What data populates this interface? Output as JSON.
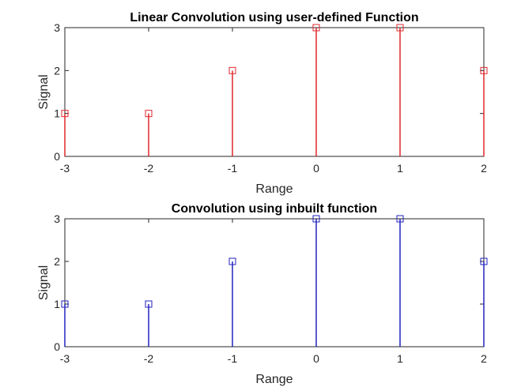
{
  "chart_data": [
    {
      "type": "stem",
      "title": "Linear Convolution using user-defined Function",
      "xlabel": "Range",
      "ylabel": "Signal",
      "x": [
        -3,
        -2,
        -1,
        0,
        1,
        2
      ],
      "values": [
        1,
        1,
        2,
        3,
        3,
        2
      ],
      "xlim": [
        -3,
        2
      ],
      "ylim": [
        0,
        3
      ],
      "xticks": [
        -3,
        -2,
        -1,
        0,
        1,
        2
      ],
      "yticks": [
        0,
        1,
        2,
        3
      ],
      "marker": "square",
      "color": "#e0282c",
      "grid": false
    },
    {
      "type": "stem",
      "title": "Convolution using inbuilt function",
      "xlabel": "Range",
      "ylabel": "Signal",
      "x": [
        -3,
        -2,
        -1,
        0,
        1,
        2
      ],
      "values": [
        1,
        1,
        2,
        3,
        3,
        2
      ],
      "xlim": [
        -3,
        2
      ],
      "ylim": [
        0,
        3
      ],
      "xticks": [
        -3,
        -2,
        -1,
        0,
        1,
        2
      ],
      "yticks": [
        0,
        1,
        2,
        3
      ],
      "marker": "square",
      "color": "#2222c0",
      "grid": false
    }
  ]
}
